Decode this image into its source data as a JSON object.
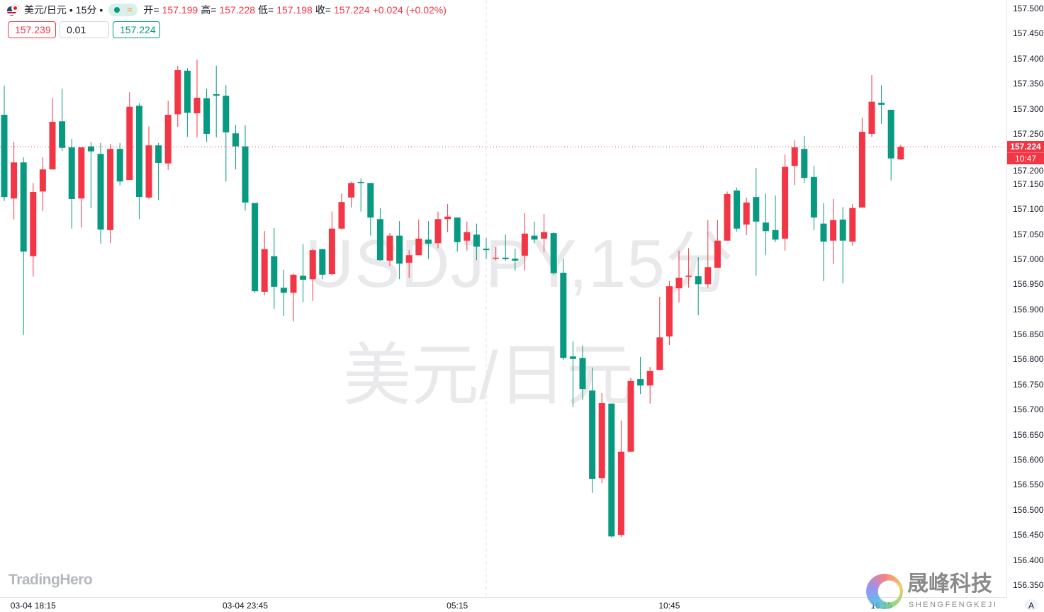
{
  "header": {
    "symbol": "美元/日元",
    "interval": "15分",
    "sep": "•",
    "approx_icon": "≈",
    "open_label": "开=",
    "open": "157.199",
    "high_label": "高=",
    "high": "157.228",
    "low_label": "低=",
    "low": "157.198",
    "close_label": "收=",
    "close": "157.224",
    "change": "+0.024 (+0.02%)"
  },
  "trade": {
    "sell_price": "157.239",
    "quantity": "0.01",
    "buy_price": "157.224"
  },
  "watermark": {
    "line1": "USDJPY,15分",
    "line2": "美元/日元"
  },
  "logos": {
    "left": "TradingHero",
    "right_cn": "晟峰科技",
    "right_en": "SHENGFENGKEJI"
  },
  "axis_mode": "A",
  "current_price": {
    "price": "157.224",
    "countdown": "10:47"
  },
  "colors": {
    "up": "#F23645",
    "down": "#089981",
    "price_line": "#F23645"
  },
  "chart_data": {
    "type": "candlestick",
    "interval_minutes": 15,
    "ylim": [
      156.325,
      157.52
    ],
    "yticks": [
      "157.500",
      "157.450",
      "157.400",
      "157.350",
      "157.300",
      "157.250",
      "157.200",
      "157.150",
      "157.100",
      "157.050",
      "157.000",
      "156.950",
      "156.900",
      "156.850",
      "156.800",
      "156.750",
      "156.700",
      "156.650",
      "156.600",
      "156.550",
      "156.500",
      "156.450",
      "156.400",
      "156.350"
    ],
    "xticks": [
      {
        "label": "03-04 18:15",
        "at": "18:15"
      },
      {
        "label": "03-04 23:45",
        "at": "23:45"
      },
      {
        "label": "05:15",
        "at": "05:15"
      },
      {
        "label": "10:45",
        "at": "10:45"
      },
      {
        "label": "16:15",
        "at": "16:15"
      }
    ],
    "session_break": "06:00",
    "candles_columns": [
      "time",
      "open",
      "high",
      "low",
      "close"
    ],
    "candles": [
      [
        "17:30",
        157.288,
        157.346,
        157.116,
        157.124
      ],
      [
        "17:45",
        157.121,
        157.234,
        157.079,
        157.193
      ],
      [
        "18:00",
        157.193,
        157.203,
        156.849,
        157.015
      ],
      [
        "18:15",
        157.006,
        157.152,
        156.965,
        157.134
      ],
      [
        "18:30",
        157.135,
        157.203,
        157.096,
        157.179
      ],
      [
        "18:45",
        157.179,
        157.321,
        157.179,
        157.274
      ],
      [
        "19:00",
        157.275,
        157.34,
        157.216,
        157.222
      ],
      [
        "19:15",
        157.223,
        157.24,
        157.061,
        157.12
      ],
      [
        "19:30",
        157.121,
        157.223,
        157.063,
        157.223
      ],
      [
        "19:45",
        157.225,
        157.234,
        157.102,
        157.215
      ],
      [
        "20:00",
        157.21,
        157.232,
        157.031,
        157.059
      ],
      [
        "20:15",
        157.058,
        157.23,
        157.032,
        157.22
      ],
      [
        "20:30",
        157.22,
        157.232,
        157.147,
        157.155
      ],
      [
        "20:45",
        157.158,
        157.333,
        157.158,
        157.304
      ],
      [
        "21:00",
        157.306,
        157.311,
        157.08,
        157.124
      ],
      [
        "21:15",
        157.123,
        157.265,
        157.12,
        157.227
      ],
      [
        "21:30",
        157.227,
        157.232,
        157.118,
        157.192
      ],
      [
        "21:45",
        157.191,
        157.316,
        157.178,
        157.288
      ],
      [
        "22:00",
        157.289,
        157.386,
        157.264,
        157.377
      ],
      [
        "22:15",
        157.376,
        157.381,
        157.244,
        157.292
      ],
      [
        "22:30",
        157.291,
        157.398,
        157.243,
        157.322
      ],
      [
        "22:45",
        157.321,
        157.34,
        157.234,
        157.25
      ],
      [
        "23:00",
        157.329,
        157.386,
        157.243,
        157.326
      ],
      [
        "23:15",
        157.326,
        157.347,
        157.155,
        157.253
      ],
      [
        "23:30",
        157.251,
        157.268,
        157.179,
        157.225
      ],
      [
        "23:45",
        157.225,
        157.267,
        157.097,
        157.113
      ],
      [
        "00:00",
        157.112,
        157.112,
        156.932,
        156.936
      ],
      [
        "00:15",
        156.935,
        157.056,
        156.928,
        157.02
      ],
      [
        "00:30",
        157.006,
        157.062,
        156.901,
        156.945
      ],
      [
        "00:45",
        156.943,
        156.979,
        156.887,
        156.933
      ],
      [
        "01:00",
        156.933,
        156.972,
        156.876,
        156.969
      ],
      [
        "01:15",
        156.967,
        157.03,
        156.914,
        156.959
      ],
      [
        "01:30",
        156.96,
        157.021,
        156.917,
        157.018
      ],
      [
        "01:45",
        157.02,
        157.021,
        156.96,
        156.969
      ],
      [
        "02:00",
        156.97,
        157.095,
        156.967,
        157.061
      ],
      [
        "02:15",
        157.061,
        157.131,
        157.059,
        157.114
      ],
      [
        "02:30",
        157.123,
        157.155,
        157.103,
        157.152
      ],
      [
        "02:45",
        157.154,
        157.161,
        157.095,
        157.152
      ],
      [
        "03:00",
        157.152,
        157.152,
        157.047,
        157.083
      ],
      [
        "03:15",
        157.08,
        157.102,
        156.997,
        156.998
      ],
      [
        "03:30",
        156.997,
        157.052,
        156.986,
        157.047
      ],
      [
        "03:45",
        157.047,
        157.076,
        156.96,
        156.991
      ],
      [
        "04:00",
        156.993,
        157.018,
        156.963,
        157.008
      ],
      [
        "04:15",
        157.008,
        157.079,
        157.008,
        157.041
      ],
      [
        "04:30",
        157.039,
        157.076,
        157.0,
        157.031
      ],
      [
        "04:45",
        157.032,
        157.095,
        157.022,
        157.08
      ],
      [
        "05:00",
        157.08,
        157.11,
        157.054,
        157.085
      ],
      [
        "05:15",
        157.083,
        157.083,
        157.015,
        157.034
      ],
      [
        "05:30",
        157.037,
        157.075,
        157.017,
        157.054
      ],
      [
        "05:45",
        157.049,
        157.071,
        156.998,
        157.025
      ],
      [
        "06:00",
        157.021,
        157.042,
        157.0,
        157.018
      ],
      [
        "06:15",
        157.001,
        157.024,
        156.998,
        157.003
      ],
      [
        "06:30",
        157.003,
        157.049,
        156.997,
        157.0
      ],
      [
        "06:45",
        157.001,
        157.021,
        156.977,
        156.997
      ],
      [
        "07:00",
        157.007,
        157.092,
        156.977,
        157.051
      ],
      [
        "07:15",
        157.047,
        157.075,
        157.032,
        157.039
      ],
      [
        "07:30",
        157.041,
        157.09,
        157.014,
        157.054
      ],
      [
        "07:45",
        157.052,
        157.054,
        156.969,
        156.972
      ],
      [
        "08:00",
        156.973,
        157.001,
        156.799,
        156.803
      ],
      [
        "08:15",
        156.806,
        156.836,
        156.705,
        156.801
      ],
      [
        "08:30",
        156.803,
        156.828,
        156.719,
        156.741
      ],
      [
        "08:45",
        156.738,
        156.784,
        156.534,
        156.562
      ],
      [
        "09:00",
        156.563,
        156.733,
        156.553,
        156.713
      ],
      [
        "09:15",
        156.712,
        156.712,
        156.445,
        156.447
      ],
      [
        "09:30",
        156.45,
        156.678,
        156.446,
        156.616
      ],
      [
        "09:45",
        156.616,
        156.763,
        156.616,
        156.757
      ],
      [
        "10:00",
        156.761,
        156.805,
        156.731,
        156.748
      ],
      [
        "10:15",
        156.748,
        156.785,
        156.712,
        156.777
      ],
      [
        "10:30",
        156.779,
        156.925,
        156.779,
        156.844
      ],
      [
        "10:45",
        156.846,
        156.956,
        156.829,
        156.946
      ],
      [
        "11:00",
        156.942,
        157.017,
        156.914,
        156.963
      ],
      [
        "11:15",
        156.965,
        157.022,
        156.943,
        156.967
      ],
      [
        "11:30",
        156.966,
        157.004,
        156.888,
        156.95
      ],
      [
        "11:45",
        156.95,
        157.078,
        156.943,
        156.984
      ],
      [
        "12:00",
        156.983,
        157.078,
        156.983,
        157.037
      ],
      [
        "12:15",
        157.037,
        157.135,
        157.037,
        157.13
      ],
      [
        "12:30",
        157.137,
        157.143,
        157.055,
        157.061
      ],
      [
        "12:45",
        157.069,
        157.123,
        157.048,
        157.113
      ],
      [
        "13:00",
        157.124,
        157.182,
        156.967,
        157.075
      ],
      [
        "13:15",
        157.073,
        157.131,
        157.008,
        157.056
      ],
      [
        "13:30",
        157.058,
        157.127,
        157.034,
        157.039
      ],
      [
        "13:45",
        157.041,
        157.209,
        157.017,
        157.184
      ],
      [
        "14:00",
        157.186,
        157.237,
        157.148,
        157.223
      ],
      [
        "14:15",
        157.22,
        157.246,
        157.152,
        157.162
      ],
      [
        "14:30",
        157.164,
        157.186,
        157.058,
        157.083
      ],
      [
        "14:45",
        157.071,
        157.112,
        156.956,
        157.035
      ],
      [
        "15:00",
        157.037,
        157.12,
        156.99,
        157.078
      ],
      [
        "15:15",
        157.079,
        157.104,
        156.952,
        157.037
      ],
      [
        "15:30",
        157.035,
        157.11,
        157.027,
        157.102
      ],
      [
        "15:45",
        157.103,
        157.282,
        157.103,
        157.254
      ],
      [
        "16:00",
        157.25,
        157.367,
        157.244,
        157.314
      ],
      [
        "16:15",
        157.312,
        157.347,
        157.27,
        157.308
      ],
      [
        "16:30",
        157.298,
        157.298,
        157.157,
        157.201
      ],
      [
        "16:45",
        157.199,
        157.228,
        157.198,
        157.224
      ]
    ]
  }
}
